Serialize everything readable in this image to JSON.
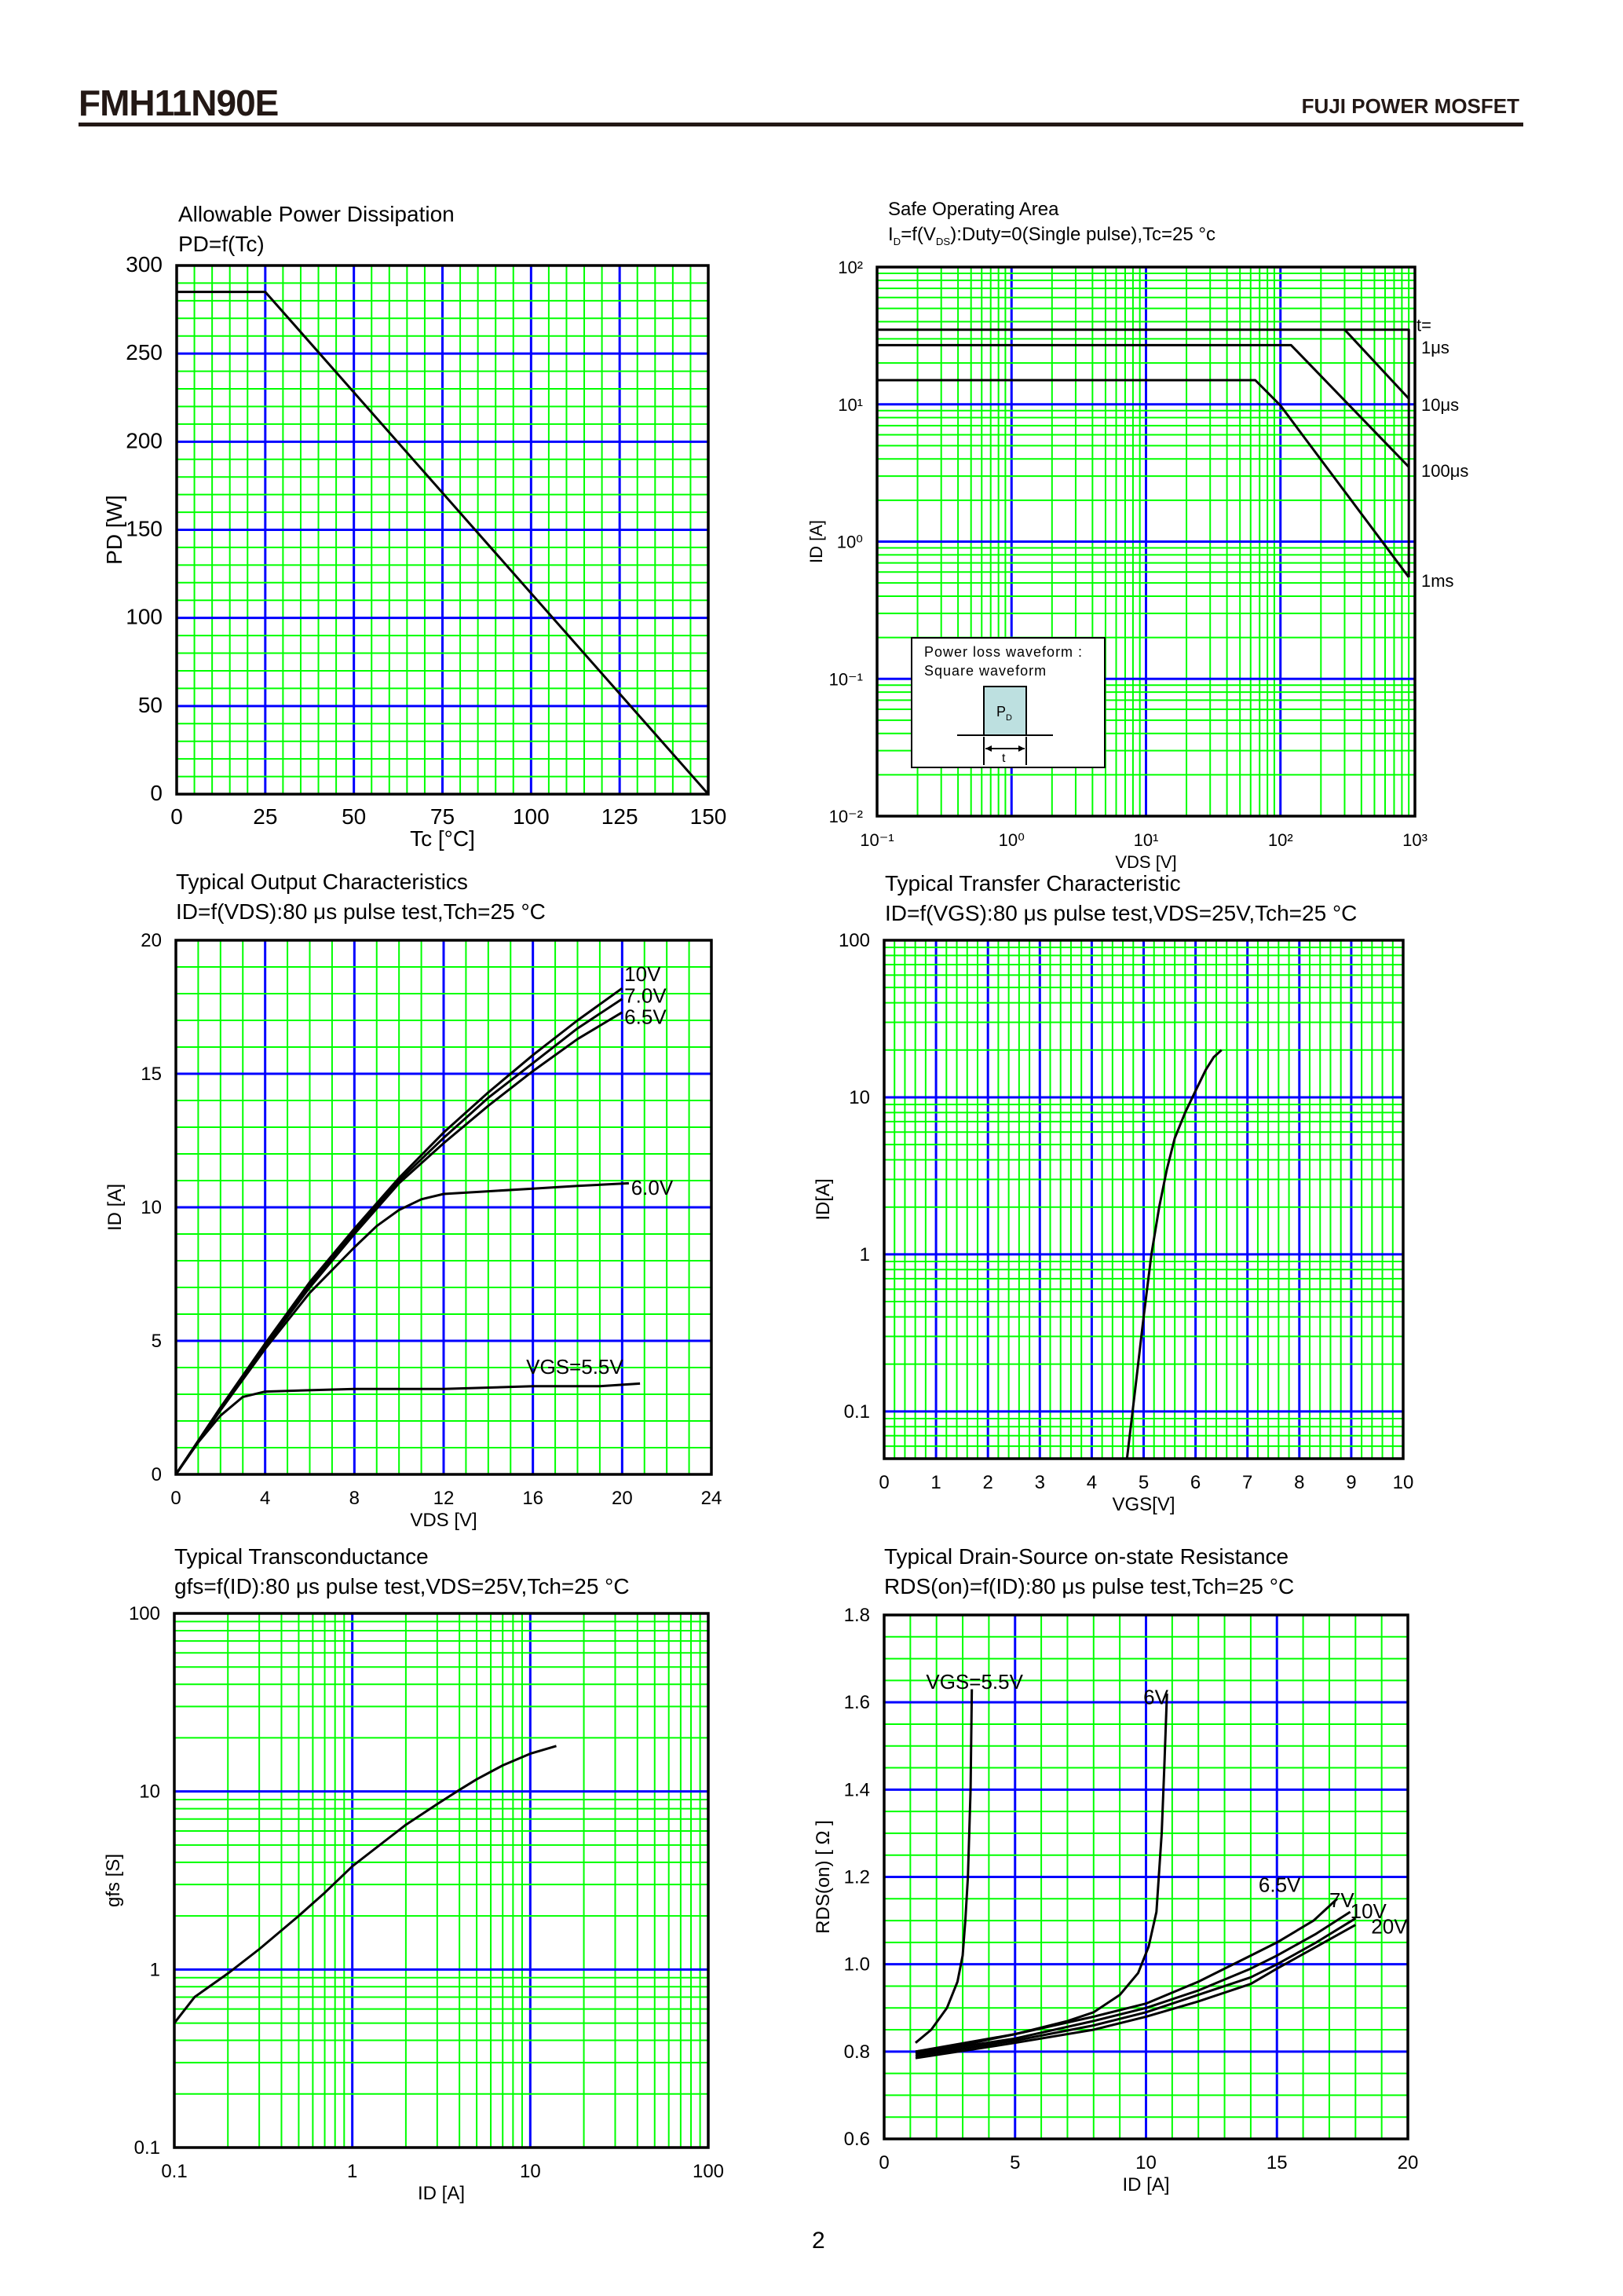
{
  "header": {
    "part_number": "FMH11N90E",
    "brand": "FUJI POWER MOSFET"
  },
  "footer": {
    "page_number": "2"
  },
  "colors": {
    "minor_grid": "#00ff00",
    "major_grid": "#0000ff",
    "curve": "#000000",
    "frame": "#000000",
    "inset_pulse": "#bde0e0"
  },
  "chart_data": [
    {
      "id": "power-dissipation",
      "type": "line",
      "title": "Allowable Power Dissipation",
      "subtitle": "PD=f(Tc)",
      "xlabel": "Tc [°C]",
      "ylabel": "PD [W]",
      "xscale": "linear",
      "yscale": "linear",
      "xlim": [
        0,
        150
      ],
      "ylim": [
        0,
        300
      ],
      "x_ticks": [
        0,
        25,
        50,
        75,
        100,
        125,
        150
      ],
      "x_tick_labels": [
        "0",
        "25",
        "50",
        "75",
        "100",
        "125",
        "150"
      ],
      "y_ticks": [
        0,
        50,
        100,
        150,
        200,
        250,
        300
      ],
      "y_tick_labels": [
        "0",
        "50",
        "100",
        "150",
        "200",
        "250",
        "300"
      ],
      "grid": {
        "x_minor": 5,
        "x_major": 25,
        "y_minor": 10,
        "y_major": 50
      },
      "series": [
        {
          "points": [
            [
              0,
              285
            ],
            [
              25,
              285
            ],
            [
              150,
              0
            ]
          ]
        }
      ]
    },
    {
      "id": "safe-operating-area",
      "type": "line",
      "title": "Safe Operating Area",
      "subtitle_parts": [
        {
          "t": "I"
        },
        {
          "t": "D",
          "sub": true
        },
        {
          "t": "=f(V"
        },
        {
          "t": "DS",
          "sub": true
        },
        {
          "t": "):Duty=0(Single pulse),Tc=25 °c"
        }
      ],
      "xlabel": "VDS [V]",
      "ylabel": "ID [A]",
      "xscale": "log",
      "yscale": "log",
      "xlim": [
        0.1,
        1000
      ],
      "ylim": [
        0.01,
        100
      ],
      "x_ticks": [
        0.1,
        1,
        10,
        100,
        1000
      ],
      "x_tick_labels": [
        "10⁻¹",
        "10⁰",
        "10¹",
        "10²",
        "10³"
      ],
      "y_ticks": [
        0.01,
        0.1,
        1,
        10,
        100
      ],
      "y_tick_labels": [
        "10⁻²",
        "10⁻¹",
        "10⁰",
        "10¹",
        "10²"
      ],
      "grid": {
        "log": true
      },
      "series_label_header": "t=",
      "series": [
        {
          "name": "1μs",
          "points": [
            [
              0.1,
              35
            ],
            [
              900,
              35
            ],
            [
              900,
              0.55
            ]
          ]
        },
        {
          "name": "10μs",
          "points": [
            [
              300,
              35
            ],
            [
              900,
              11
            ]
          ]
        },
        {
          "name": "100μs",
          "points": [
            [
              0.1,
              27
            ],
            [
              120,
              27
            ],
            [
              900,
              3.5
            ]
          ]
        },
        {
          "name": "1ms",
          "points": [
            [
              0.1,
              15
            ],
            [
              65,
              15
            ],
            [
              100,
              9.8
            ],
            [
              900,
              0.55
            ]
          ]
        }
      ],
      "inset": {
        "line1": "Power loss waveform :",
        "line2": "Square waveform",
        "pulse_label": "P",
        "pulse_sub": "D",
        "width_label": "t"
      }
    },
    {
      "id": "output-characteristics",
      "type": "line",
      "title": "Typical Output Characteristics",
      "subtitle": "ID=f(VDS):80 μs pulse test,Tch=25 °C",
      "xlabel": "VDS [V]",
      "ylabel": "ID [A]",
      "xscale": "linear",
      "yscale": "linear",
      "xlim": [
        0,
        24
      ],
      "ylim": [
        0,
        20
      ],
      "x_ticks": [
        0,
        4,
        8,
        12,
        16,
        20,
        24
      ],
      "x_tick_labels": [
        "0",
        "4",
        "8",
        "12",
        "16",
        "20",
        "24"
      ],
      "y_ticks": [
        0,
        5,
        10,
        15,
        20
      ],
      "y_tick_labels": [
        "0",
        "5",
        "10",
        "15",
        "20"
      ],
      "grid": {
        "x_minor": 1,
        "x_major": 4,
        "y_minor": 1,
        "y_major": 5
      },
      "series": [
        {
          "name": "10V",
          "points": [
            [
              0,
              0
            ],
            [
              2,
              2.5
            ],
            [
              4,
              4.9
            ],
            [
              6,
              7.2
            ],
            [
              8,
              9.2
            ],
            [
              10,
              11.1
            ],
            [
              12,
              12.8
            ],
            [
              14,
              14.3
            ],
            [
              16,
              15.7
            ],
            [
              18,
              17
            ],
            [
              20,
              18.2
            ]
          ]
        },
        {
          "name": "7.0V",
          "points": [
            [
              0,
              0
            ],
            [
              2,
              2.5
            ],
            [
              4,
              4.8
            ],
            [
              6,
              7.1
            ],
            [
              8,
              9.1
            ],
            [
              10,
              11
            ],
            [
              12,
              12.6
            ],
            [
              14,
              14.1
            ],
            [
              16,
              15.4
            ],
            [
              18,
              16.7
            ],
            [
              20,
              17.8
            ]
          ]
        },
        {
          "name": "6.5V",
          "points": [
            [
              0,
              0
            ],
            [
              2,
              2.5
            ],
            [
              4,
              4.8
            ],
            [
              6,
              7
            ],
            [
              8,
              9
            ],
            [
              10,
              10.9
            ],
            [
              12,
              12.4
            ],
            [
              14,
              13.8
            ],
            [
              16,
              15.1
            ],
            [
              18,
              16.3
            ],
            [
              20,
              17.3
            ]
          ]
        },
        {
          "name": "6.0V",
          "points": [
            [
              0,
              0
            ],
            [
              2,
              2.4
            ],
            [
              4,
              4.7
            ],
            [
              6,
              6.8
            ],
            [
              8,
              8.5
            ],
            [
              9,
              9.3
            ],
            [
              10,
              9.9
            ],
            [
              11,
              10.3
            ],
            [
              12,
              10.5
            ],
            [
              14,
              10.6
            ],
            [
              16,
              10.7
            ],
            [
              18,
              10.8
            ],
            [
              20.3,
              10.9
            ]
          ]
        },
        {
          "name": "VGS=5.5V",
          "points": [
            [
              0,
              0
            ],
            [
              1,
              1.2
            ],
            [
              2,
              2.2
            ],
            [
              3,
              2.9
            ],
            [
              4,
              3.1
            ],
            [
              8,
              3.2
            ],
            [
              12,
              3.2
            ],
            [
              16,
              3.3
            ],
            [
              19,
              3.3
            ],
            [
              20.8,
              3.4
            ]
          ]
        }
      ]
    },
    {
      "id": "transfer-characteristic",
      "type": "line",
      "title": "Typical Transfer Characteristic",
      "subtitle": "ID=f(VGS):80 μs pulse test,VDS=25V,Tch=25 °C",
      "xlabel": "VGS[V]",
      "ylabel": "ID[A]",
      "xscale": "linear",
      "yscale": "log",
      "xlim": [
        0,
        10
      ],
      "ylim": [
        0.05,
        100
      ],
      "x_ticks": [
        0,
        1,
        2,
        3,
        4,
        5,
        6,
        7,
        8,
        9,
        10
      ],
      "x_tick_labels": [
        "0",
        "1",
        "2",
        "3",
        "4",
        "5",
        "6",
        "7",
        "8",
        "9",
        "10"
      ],
      "y_ticks": [
        0.1,
        1,
        10,
        100
      ],
      "y_tick_labels": [
        "0.1",
        "1",
        "10",
        "100"
      ],
      "grid": {
        "x_minor": 0.2,
        "x_major": 1,
        "y_log": true
      },
      "series": [
        {
          "points": [
            [
              4.68,
              0.05
            ],
            [
              4.85,
              0.15
            ],
            [
              5.0,
              0.4
            ],
            [
              5.15,
              1
            ],
            [
              5.3,
              2
            ],
            [
              5.45,
              3.5
            ],
            [
              5.6,
              5.5
            ],
            [
              5.8,
              8
            ],
            [
              6.0,
              11
            ],
            [
              6.2,
              15
            ],
            [
              6.35,
              18
            ],
            [
              6.5,
              20
            ]
          ]
        }
      ]
    },
    {
      "id": "transconductance",
      "type": "line",
      "title": "Typical Transconductance",
      "subtitle": "gfs=f(ID):80 μs pulse test,VDS=25V,Tch=25 °C",
      "xlabel": "ID [A]",
      "ylabel": "gfs [S]",
      "xscale": "log",
      "yscale": "log",
      "xlim": [
        0.1,
        100
      ],
      "ylim": [
        0.1,
        100
      ],
      "x_ticks": [
        0.1,
        1,
        10,
        100
      ],
      "x_tick_labels": [
        "0.1",
        "1",
        "10",
        "100"
      ],
      "y_ticks": [
        0.1,
        1,
        10,
        100
      ],
      "y_tick_labels": [
        "0.1",
        "1",
        "10",
        "100"
      ],
      "grid": {
        "log": true
      },
      "series": [
        {
          "points": [
            [
              0.1,
              0.5
            ],
            [
              0.13,
              0.7
            ],
            [
              0.2,
              0.95
            ],
            [
              0.3,
              1.3
            ],
            [
              0.5,
              2
            ],
            [
              0.7,
              2.7
            ],
            [
              1,
              3.8
            ],
            [
              1.5,
              5.2
            ],
            [
              2,
              6.5
            ],
            [
              3,
              8.5
            ],
            [
              4,
              10.2
            ],
            [
              5,
              11.7
            ],
            [
              7,
              14
            ],
            [
              10,
              16.3
            ],
            [
              14,
              18
            ]
          ]
        }
      ]
    },
    {
      "id": "on-state-resistance",
      "type": "line",
      "title": "Typical Drain-Source on-state Resistance",
      "subtitle": "RDS(on)=f(ID):80  μs pulse test,Tch=25 °C",
      "xlabel": "ID [A]",
      "ylabel": "RDS(on) [  Ω ]",
      "xscale": "linear",
      "yscale": "linear",
      "xlim": [
        0,
        20
      ],
      "ylim": [
        0.6,
        1.8
      ],
      "x_ticks": [
        0,
        5,
        10,
        15,
        20
      ],
      "x_tick_labels": [
        "0",
        "5",
        "10",
        "15",
        "20"
      ],
      "y_ticks": [
        0.6,
        0.8,
        1.0,
        1.2,
        1.4,
        1.6,
        1.8
      ],
      "y_tick_labels": [
        "0.6",
        "0.8",
        "1.0",
        "1.2",
        "1.4",
        "1.6",
        "1.8"
      ],
      "grid": {
        "x_minor": 1,
        "x_major": 5,
        "y_minor": 0.05,
        "y_major": 0.2
      },
      "series": [
        {
          "name": "VGS=5.5V",
          "points": [
            [
              1.2,
              0.82
            ],
            [
              1.8,
              0.85
            ],
            [
              2.4,
              0.9
            ],
            [
              2.8,
              0.96
            ],
            [
              3.0,
              1.02
            ],
            [
              3.1,
              1.1
            ],
            [
              3.2,
              1.2
            ],
            [
              3.3,
              1.4
            ],
            [
              3.35,
              1.63
            ]
          ]
        },
        {
          "name": "6V",
          "points": [
            [
              1.2,
              0.8
            ],
            [
              3,
              0.815
            ],
            [
              5,
              0.84
            ],
            [
              7,
              0.87
            ],
            [
              8,
              0.89
            ],
            [
              9,
              0.93
            ],
            [
              9.7,
              0.98
            ],
            [
              10.1,
              1.04
            ],
            [
              10.4,
              1.12
            ],
            [
              10.6,
              1.3
            ],
            [
              10.7,
              1.45
            ],
            [
              10.8,
              1.62
            ]
          ]
        },
        {
          "name": "6.5V",
          "points": [
            [
              1.2,
              0.8
            ],
            [
              5,
              0.84
            ],
            [
              8,
              0.88
            ],
            [
              10,
              0.91
            ],
            [
              12,
              0.96
            ],
            [
              14,
              1.02
            ],
            [
              15,
              1.05
            ],
            [
              16.4,
              1.1
            ],
            [
              17.3,
              1.15
            ]
          ]
        },
        {
          "name": "7V",
          "points": [
            [
              1.2,
              0.795
            ],
            [
              5,
              0.83
            ],
            [
              8,
              0.87
            ],
            [
              10,
              0.9
            ],
            [
              12,
              0.94
            ],
            [
              14,
              0.99
            ],
            [
              15,
              1.02
            ],
            [
              16.5,
              1.07
            ],
            [
              17.8,
              1.12
            ]
          ]
        },
        {
          "name": "10V",
          "points": [
            [
              1.2,
              0.79
            ],
            [
              5,
              0.825
            ],
            [
              8,
              0.86
            ],
            [
              10,
              0.89
            ],
            [
              12,
              0.93
            ],
            [
              14,
              0.97
            ],
            [
              15,
              1.0
            ],
            [
              16.5,
              1.05
            ],
            [
              18,
              1.105
            ]
          ]
        },
        {
          "name": "20V",
          "points": [
            [
              1.2,
              0.785
            ],
            [
              5,
              0.82
            ],
            [
              8,
              0.85
            ],
            [
              10,
              0.88
            ],
            [
              12,
              0.915
            ],
            [
              14,
              0.955
            ],
            [
              15,
              0.99
            ],
            [
              16.5,
              1.04
            ],
            [
              18,
              1.09
            ]
          ]
        }
      ]
    }
  ]
}
